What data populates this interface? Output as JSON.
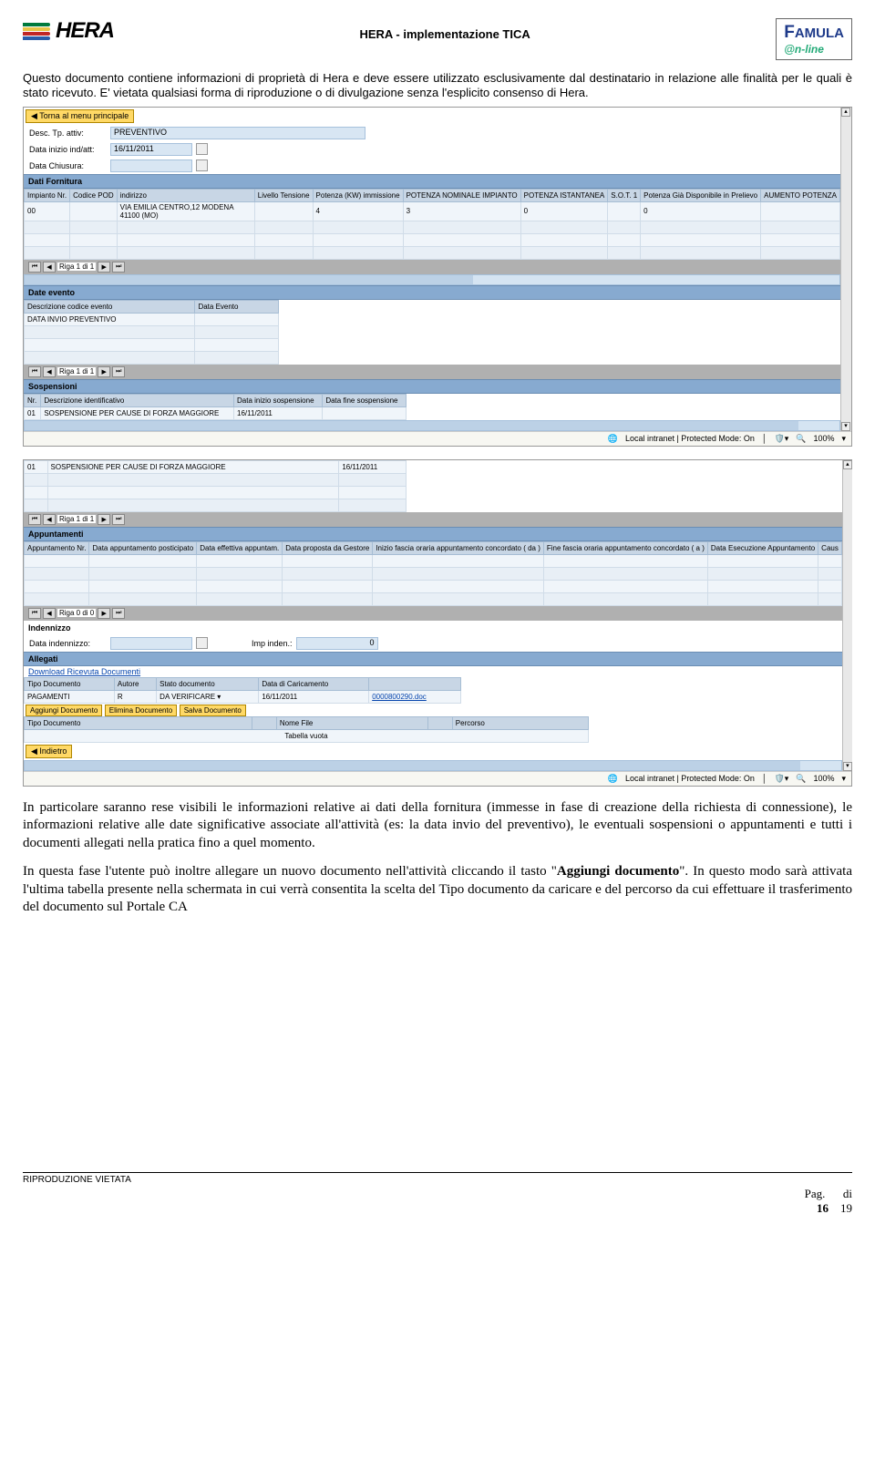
{
  "header": {
    "doc_title": "HERA - implementazione TICA",
    "hera_name": "HERA",
    "famula_l1": "FAMULA",
    "famula_l2": "@n-line"
  },
  "legal": "Questo documento contiene informazioni di proprietà di Hera e deve essere utilizzato esclusivamente dal destinatario in relazione alle finalità per le quali è stato ricevuto. E' vietata qualsiasi forma di riproduzione o di divulgazione senza l'esplicito consenso di Hera.",
  "shot1": {
    "back": "◀ Torna al menu principale",
    "desc_label": "Desc. Tp. attiv:",
    "desc_value": "PREVENTIVO",
    "data_inizio_label": "Data inizio ind/att:",
    "data_inizio_value": "16/11/2011",
    "data_chiusura_label": "Data Chiusura:",
    "data_chiusura_value": "",
    "dati_fornitura": "Dati Fornitura",
    "fornitura_headers": [
      "Impianto Nr.",
      "Codice POD",
      "indirizzo",
      "Livello Tensione",
      "Potenza (KW) immissione",
      "POTENZA NOMINALE IMPIANTO",
      "POTENZA ISTANTANEA",
      "S.O.T. 1",
      "Potenza Già Disponibile in Prelievo",
      "AUMENTO POTENZA"
    ],
    "fornitura_row": [
      "00",
      "",
      "VIA EMILIA CENTRO,12 MODENA 41100 (MO)",
      "",
      "4",
      "3",
      "0",
      "",
      "0",
      ""
    ],
    "riga_1_di_1": "Riga 1 di 1",
    "date_evento": "Date evento",
    "evento_headers": [
      "Descrizione codice evento",
      "Data Evento"
    ],
    "evento_row": [
      "DATA INVIO PREVENTIVO",
      ""
    ],
    "sospensioni": "Sospensioni",
    "sosp_headers": [
      "Nr.",
      "Descrizione identificativo",
      "Data inizio sospensione",
      "Data fine sospensione"
    ],
    "sosp_row": [
      "01",
      "SOSPENSIONE PER CAUSE DI FORZA MAGGIORE",
      "16/11/2011",
      ""
    ],
    "status_intranet": "Local intranet | Protected Mode: On",
    "status_zoom": "100%"
  },
  "shot2": {
    "sosp_row": [
      "01",
      "SOSPENSIONE PER CAUSE DI FORZA MAGGIORE",
      "16/11/2011"
    ],
    "riga_1_di_1": "Riga 1 di 1",
    "appuntamenti": "Appuntamenti",
    "app_headers": [
      "Appuntamento Nr.",
      "Data appuntamento posticipato",
      "Data effettiva appuntam.",
      "Data proposta da Gestore",
      "Inizio fascia oraria appuntamento concordato ( da )",
      "Fine fascia oraria appuntamento concordato ( a )",
      "Data Esecuzione Appuntamento",
      "Caus"
    ],
    "riga_0_di_0": "Riga 0 di 0",
    "indennizzo": "Indennizzo",
    "data_indennizzo_label": "Data indennizzo:",
    "imp_inden_label": "Imp inden.:",
    "imp_inden_value": "0",
    "allegati": "Allegati",
    "download_link": "Download Ricevuta Documenti",
    "alleg_headers": [
      "Tipo Documento",
      "Autore",
      "Stato documento",
      "Data di Caricamento",
      ""
    ],
    "alleg_row": [
      "PAGAMENTI",
      "R",
      "DA VERIFICARE ▾",
      "16/11/2011",
      "0000800290.doc"
    ],
    "btn_aggiungi": "Aggiungi Documento",
    "btn_elimina": "Elimina Documento",
    "btn_salva": "Salva Documento",
    "upload_headers": [
      "Tipo Documento",
      "",
      "Nome File",
      "",
      "Percorso"
    ],
    "tabella_vuota": "Tabella vuota",
    "back": "◀ Indietro"
  },
  "para1": "In particolare saranno rese visibili le informazioni relative ai dati della fornitura (immesse in fase di creazione della richiesta di connessione), le informazioni relative alle date significative associate all'attività (es: la data invio del preventivo), le eventuali sospensioni o appuntamenti e tutti i documenti allegati nella pratica fino a quel momento.",
  "para2a": "In questa fase l'utente può inoltre allegare un nuovo documento nell'attività cliccando il tasto \"",
  "para2b": "Aggiungi documento",
  "para2c": "\". In questo modo sarà attivata l'ultima tabella presente nella schermata in cui verrà consentita la scelta del Tipo documento da caricare e del percorso da cui effettuare il trasferimento del documento sul Portale CA",
  "footer": {
    "riproduzione": "RIPRODUZIONE VIETATA",
    "pag": "Pag.",
    "di": "di",
    "page_num": "16",
    "page_total": "19"
  }
}
